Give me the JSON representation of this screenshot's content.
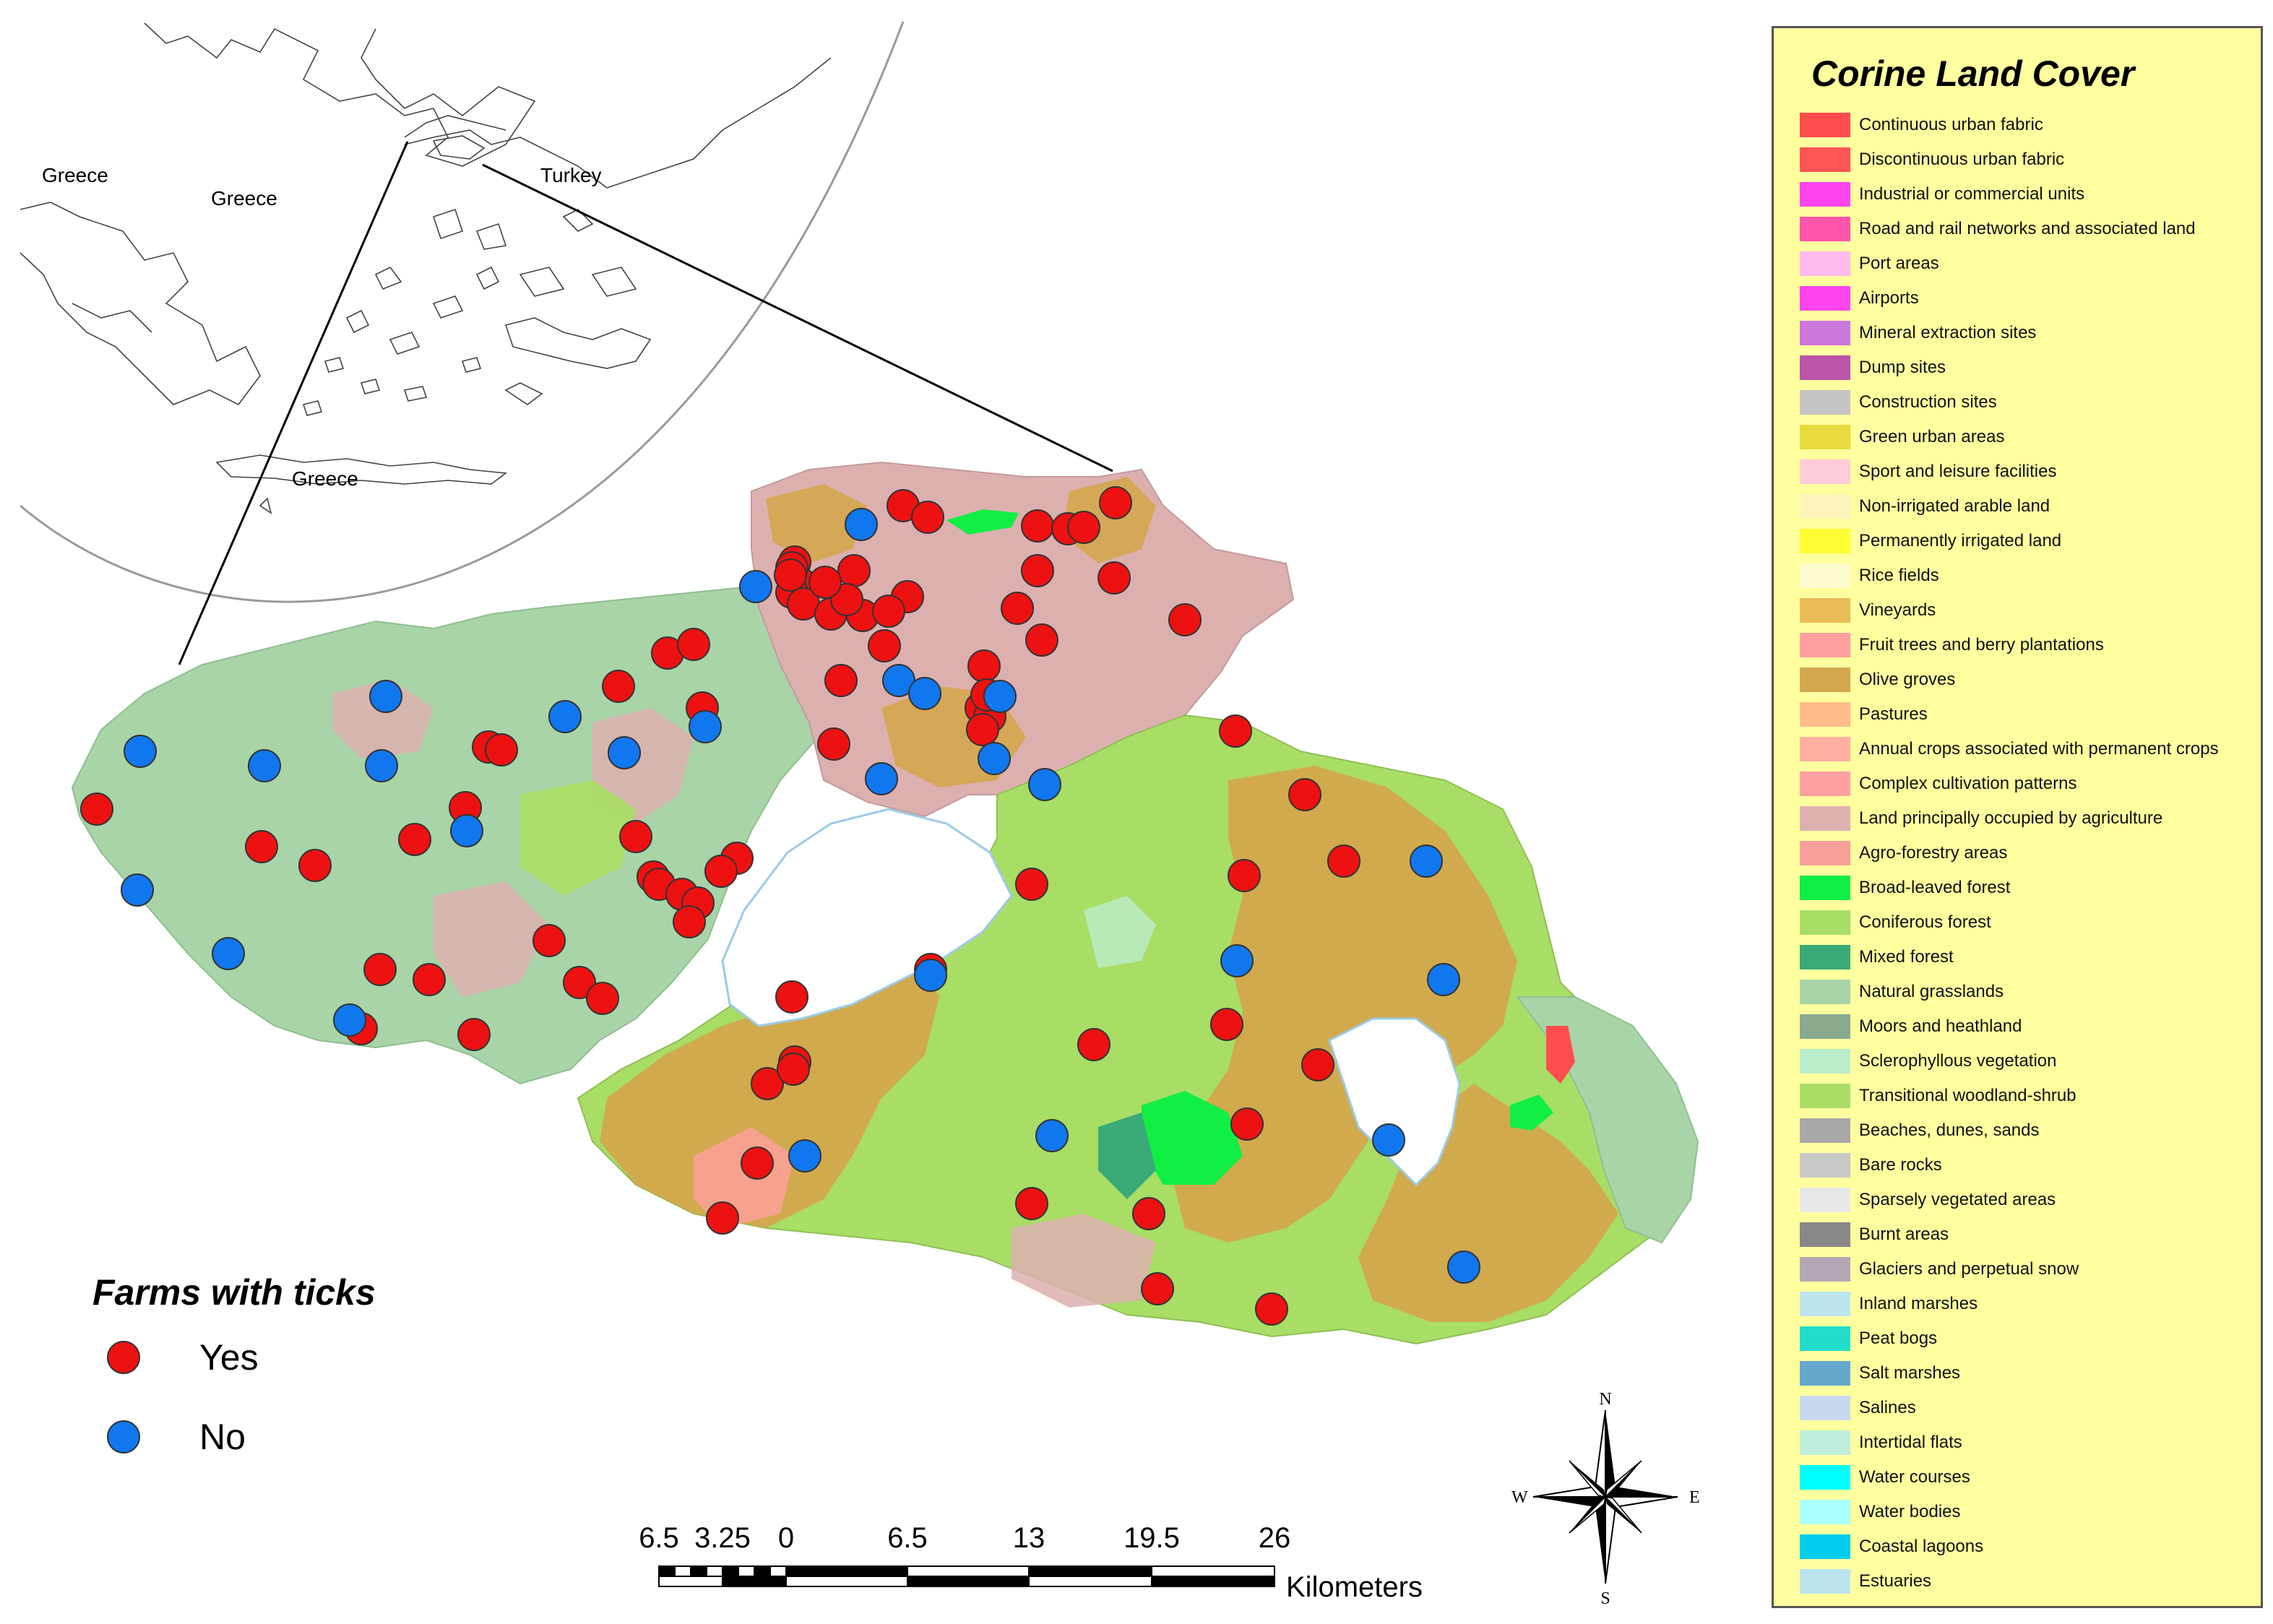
{
  "map": {
    "inset_labels": [
      "Greece",
      "Greece",
      "Turkey",
      "Greece"
    ]
  },
  "farms_legend": {
    "title": "Farms with ticks",
    "items": [
      {
        "label": "Yes",
        "color": "#ee1111"
      },
      {
        "label": "No",
        "color": "#1177ee"
      }
    ]
  },
  "farms": {
    "yes_count": 78,
    "no_count": 27
  },
  "scale_bar": {
    "labels": [
      "6.5",
      "3.25",
      "0",
      "6.5",
      "13",
      "19.5",
      "26"
    ],
    "unit": "Kilometers"
  },
  "north_arrow": {
    "n": "N",
    "s": "S",
    "e": "E",
    "w": "W"
  },
  "legend": {
    "title": "Corine Land Cover",
    "items": [
      {
        "label": "Continuous urban fabric",
        "color": "#ff4d4d"
      },
      {
        "label": "Discontinuous urban fabric",
        "color": "#ff5555"
      },
      {
        "label": "Industrial or commercial units",
        "color": "#ff44ee"
      },
      {
        "label": "Road and rail networks and associated land",
        "color": "#ff55aa"
      },
      {
        "label": "Port areas",
        "color": "#ffbbee"
      },
      {
        "label": "Airports",
        "color": "#ff44ee"
      },
      {
        "label": "Mineral extraction sites",
        "color": "#cc77dd"
      },
      {
        "label": "Dump sites",
        "color": "#bb55aa"
      },
      {
        "label": "Construction sites",
        "color": "#c4c4c4"
      },
      {
        "label": "Green urban areas",
        "color": "#e8d93e"
      },
      {
        "label": "Sport and leisure facilities",
        "color": "#ffccd9"
      },
      {
        "label": "Non-irrigated arable land",
        "color": "#fff3bb"
      },
      {
        "label": "Permanently irrigated land",
        "color": "#ffff33"
      },
      {
        "label": "Rice fields",
        "color": "#fffbd0"
      },
      {
        "label": "Vineyards",
        "color": "#e8bb55"
      },
      {
        "label": "Fruit trees and berry plantations",
        "color": "#ff9f9f"
      },
      {
        "label": "Olive groves",
        "color": "#d3a74d"
      },
      {
        "label": "Pastures",
        "color": "#ffbb88"
      },
      {
        "label": "Annual crops associated with permanent crops",
        "color": "#ffb0a0"
      },
      {
        "label": "Complex cultivation patterns",
        "color": "#ffa0a0"
      },
      {
        "label": "Land principally occupied by agriculture",
        "color": "#ddb0b0"
      },
      {
        "label": "Agro-forestry areas",
        "color": "#f7a09a"
      },
      {
        "label": "Broad-leaved forest",
        "color": "#11ee44"
      },
      {
        "label": "Coniferous forest",
        "color": "#a8dd66"
      },
      {
        "label": "Mixed forest",
        "color": "#3aaa77"
      },
      {
        "label": "Natural grasslands",
        "color": "#a8d4a8"
      },
      {
        "label": "Moors and heathland",
        "color": "#8aaa90"
      },
      {
        "label": "Sclerophyllous vegetation",
        "color": "#bbeecc"
      },
      {
        "label": "Transitional woodland-shrub",
        "color": "#aadd66"
      },
      {
        "label": "Beaches, dunes, sands",
        "color": "#a8a8a8"
      },
      {
        "label": "Bare rocks",
        "color": "#c8c8c8"
      },
      {
        "label": "Sparsely vegetated areas",
        "color": "#e8e8e8"
      },
      {
        "label": "Burnt areas",
        "color": "#888888"
      },
      {
        "label": "Glaciers and perpetual snow",
        "color": "#b4a8b4"
      },
      {
        "label": "Inland marshes",
        "color": "#bbe4ee"
      },
      {
        "label": "Peat bogs",
        "color": "#22ddcc"
      },
      {
        "label": "Salt marshes",
        "color": "#66a8cc"
      },
      {
        "label": "Salines",
        "color": "#c8d8ee"
      },
      {
        "label": "Intertidal flats",
        "color": "#c0eedd"
      },
      {
        "label": "Water courses",
        "color": "#00ffff"
      },
      {
        "label": "Water bodies",
        "color": "#aaffff"
      },
      {
        "label": "Coastal lagoons",
        "color": "#00ccee"
      },
      {
        "label": "Estuaries",
        "color": "#bbe4ee"
      }
    ]
  }
}
